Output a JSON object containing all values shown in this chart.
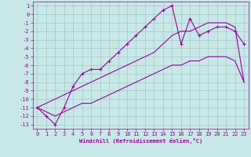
{
  "xlabel": "Windchill (Refroidissement éolien,°C)",
  "bg_color": "#c8e8e8",
  "grid_color": "#a0c8c8",
  "line_color": "#990099",
  "x_main": [
    0,
    1,
    2,
    3,
    4,
    5,
    6,
    7,
    8,
    9,
    10,
    11,
    12,
    13,
    14,
    15,
    16,
    17,
    18,
    19,
    20,
    21,
    22,
    23
  ],
  "y_zigzag": [
    -11.0,
    -12.0,
    -13.0,
    -11.0,
    -8.5,
    -7.0,
    -6.5,
    -6.5,
    -5.5,
    -4.5,
    -3.5,
    -2.5,
    -1.5,
    -0.5,
    0.5,
    1.0,
    -3.5,
    -0.5,
    -2.5,
    -2.0,
    -1.5,
    -1.5,
    -2.0,
    -3.5
  ],
  "y_upper_straight": [
    -11.0,
    -10.5,
    -10.0,
    -9.5,
    -9.0,
    -8.5,
    -8.0,
    -7.5,
    -7.0,
    -6.5,
    -6.0,
    -5.5,
    -5.0,
    -4.5,
    -3.5,
    -2.5,
    -2.0,
    -2.0,
    -1.5,
    -1.0,
    -1.0,
    -1.0,
    -1.5,
    -8.0
  ],
  "y_lower_straight": [
    -11.0,
    -11.5,
    -12.0,
    -11.5,
    -11.0,
    -10.5,
    -10.5,
    -10.0,
    -9.5,
    -9.0,
    -8.5,
    -8.0,
    -7.5,
    -7.0,
    -6.5,
    -6.0,
    -6.0,
    -5.5,
    -5.5,
    -5.0,
    -5.0,
    -5.0,
    -5.5,
    -8.0
  ],
  "xlim": [
    -0.5,
    23.5
  ],
  "ylim": [
    -13.5,
    1.5
  ],
  "yticks": [
    1,
    0,
    -1,
    -2,
    -3,
    -4,
    -5,
    -6,
    -7,
    -8,
    -9,
    -10,
    -11,
    -12,
    -13
  ],
  "xticks": [
    0,
    1,
    2,
    3,
    4,
    5,
    6,
    7,
    8,
    9,
    10,
    11,
    12,
    13,
    14,
    15,
    16,
    17,
    18,
    19,
    20,
    21,
    22,
    23
  ]
}
